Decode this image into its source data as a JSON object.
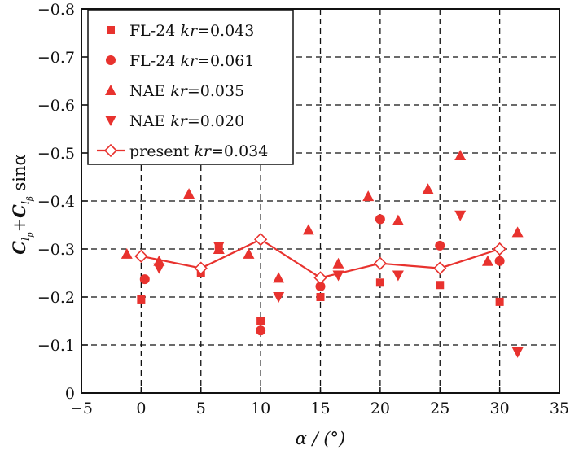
{
  "chart_data": {
    "type": "scatter",
    "title": "",
    "xlabel": "α / (°)",
    "ylabel_parts": {
      "c1": "C",
      "sub1": "l",
      "subsub1": "p",
      "plus": "+",
      "c2": "C",
      "sub2": "l",
      "subsub2": "β",
      "rest": " sinα"
    },
    "xlim": [
      -5,
      35
    ],
    "ylim": [
      0,
      -0.8
    ],
    "grid": true,
    "x_ticks": [
      -5,
      0,
      5,
      10,
      15,
      20,
      25,
      30,
      35
    ],
    "x_tick_labels": [
      "−5",
      "0",
      "5",
      "10",
      "15",
      "20",
      "25",
      "30",
      "35"
    ],
    "y_ticks": [
      0,
      -0.1,
      -0.2,
      -0.3,
      -0.4,
      -0.5,
      -0.6,
      -0.7,
      -0.8
    ],
    "y_tick_labels": [
      "0",
      "−0.1",
      "−0.2",
      "−0.3",
      "−0.4",
      "−0.5",
      "−0.6",
      "−0.7",
      "−0.8"
    ],
    "legend_position": "top-left",
    "series": [
      {
        "name": "FL-24 kr=0.043",
        "label_prefix": "FL-24 ",
        "label_kr": "kr",
        "label_value": "=0.043",
        "marker": "square",
        "color": "#e8322e",
        "x": [
          0,
          5,
          6.5,
          10,
          15,
          20,
          25,
          30
        ],
        "y": [
          -0.195,
          -0.25,
          -0.305,
          -0.15,
          -0.2,
          -0.23,
          -0.225,
          -0.19
        ]
      },
      {
        "name": "FL-24 kr=0.061",
        "label_prefix": "FL-24 ",
        "label_kr": "kr",
        "label_value": "=0.061",
        "marker": "circle",
        "color": "#e8322e",
        "x": [
          0.3,
          10,
          15,
          20,
          25,
          30
        ],
        "y": [
          -0.237,
          -0.13,
          -0.222,
          -0.362,
          -0.307,
          -0.275
        ]
      },
      {
        "name": "NAE kr=0.035",
        "label_prefix": "NAE ",
        "label_kr": "kr",
        "label_value": "=0.035",
        "marker": "triangle-up",
        "color": "#e8322e",
        "x": [
          -1.2,
          1.5,
          4,
          6.5,
          9,
          11.5,
          14,
          16.5,
          19,
          21.5,
          24,
          26.7,
          29,
          31.5
        ],
        "y": [
          -0.29,
          -0.275,
          -0.415,
          -0.3,
          -0.29,
          -0.24,
          -0.34,
          -0.27,
          -0.41,
          -0.36,
          -0.425,
          -0.495,
          -0.275,
          -0.335
        ]
      },
      {
        "name": "NAE kr=0.020",
        "label_prefix": "NAE ",
        "label_kr": "kr",
        "label_value": "=0.020",
        "marker": "triangle-down",
        "color": "#e8322e",
        "x": [
          1.5,
          6.5,
          11.5,
          16.5,
          21.5,
          26.7,
          31.5
        ],
        "y": [
          -0.26,
          -0.305,
          -0.2,
          -0.245,
          -0.245,
          -0.37,
          -0.085
        ]
      },
      {
        "name": "present kr=0.034",
        "label_prefix": "present ",
        "label_kr": "kr",
        "label_value": "=0.034",
        "marker": "diamond-open-line",
        "color": "#e8322e",
        "x": [
          0,
          5,
          10,
          15,
          20,
          25,
          30
        ],
        "y": [
          -0.285,
          -0.26,
          -0.32,
          -0.24,
          -0.27,
          -0.26,
          -0.3
        ]
      }
    ]
  }
}
